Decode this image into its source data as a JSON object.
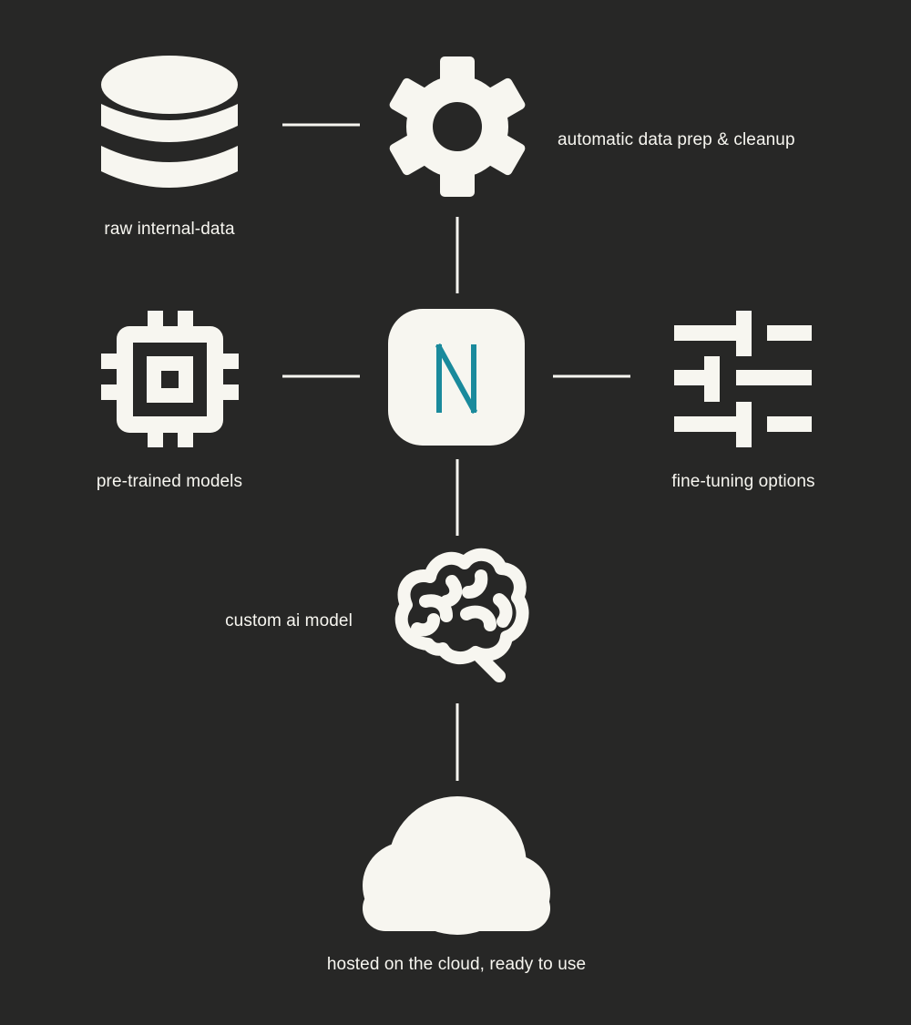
{
  "colors": {
    "background": "#272726",
    "foreground": "#f7f6f0",
    "accent": "#1a8a9c"
  },
  "nodes": {
    "raw_data": {
      "icon": "database-icon",
      "label": "raw internal-data"
    },
    "data_prep": {
      "icon": "gear-icon",
      "label": "automatic data prep & cleanup"
    },
    "pretrained": {
      "icon": "chip-icon",
      "label": "pre-trained models"
    },
    "logo": {
      "icon": "n-logo-icon",
      "label": ""
    },
    "fine_tuning": {
      "icon": "sliders-icon",
      "label": "fine-tuning options"
    },
    "custom_model": {
      "icon": "brain-icon",
      "label": "custom ai model"
    },
    "cloud": {
      "icon": "cloud-icon",
      "label": "hosted on the cloud, ready to use"
    }
  }
}
